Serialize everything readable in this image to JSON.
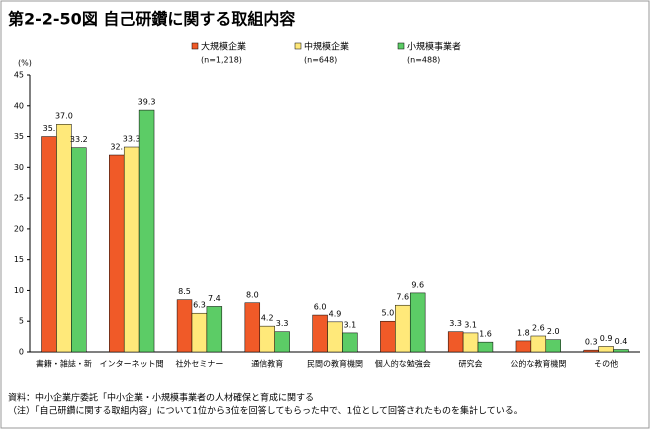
{
  "chart_data": {
    "type": "bar",
    "title": "第2-2-50図 自己研鑽に関する取組内容",
    "y_label": "(%)",
    "categories": [
      "書籍・雑誌・新",
      "インターネット閲",
      "社外セミナー",
      "通信教育",
      "民間の教育機関",
      "個人的な勉強会",
      "研究会",
      "公的な教育機関",
      "その他"
    ],
    "series": [
      {
        "name": "大規模企業",
        "note": "(n=1,218)",
        "color": "#f05a28",
        "values": [
          35,
          32,
          8.5,
          8.0,
          6.0,
          5.0,
          3.3,
          1.8,
          0.3
        ],
        "value_labels": [
          "35.",
          "32.",
          "8.5",
          "8.0",
          "6.0",
          "5.0",
          "3.3",
          "1.8",
          "0.3"
        ]
      },
      {
        "name": "中規模企業",
        "note": "(n=648)",
        "color": "#ffe97a",
        "values": [
          37.0,
          33.3,
          6.3,
          4.2,
          4.9,
          7.6,
          3.1,
          2.6,
          0.9
        ],
        "value_labels": [
          "37.0",
          "33.3",
          "6.3",
          "4.2",
          "4.9",
          "7.6",
          "3.1",
          "2.6",
          "0.9"
        ]
      },
      {
        "name": "小規模事業者",
        "note": "(n=488)",
        "color": "#5ccc66",
        "values": [
          33.2,
          39.3,
          7.4,
          3.3,
          3.1,
          9.6,
          1.6,
          2.0,
          0.4
        ],
        "value_labels": [
          "33.2",
          "39.3",
          "7.4",
          "3.3",
          "3.1",
          "9.6",
          "1.6",
          "2.0",
          "0.4"
        ]
      }
    ],
    "ylim": [
      0,
      45
    ],
    "yticks": [
      0,
      5,
      10,
      15,
      20,
      25,
      30,
      35,
      40,
      45
    ],
    "footnotes": [
      "資料：中小企業庁委託「中小企業・小規模事業者の人材確保と育成に関する",
      "（注）「自己研鑽に関する取組内容」について1位から3位を回答してもらった中で、1位として回答されたものを集計している。"
    ]
  }
}
